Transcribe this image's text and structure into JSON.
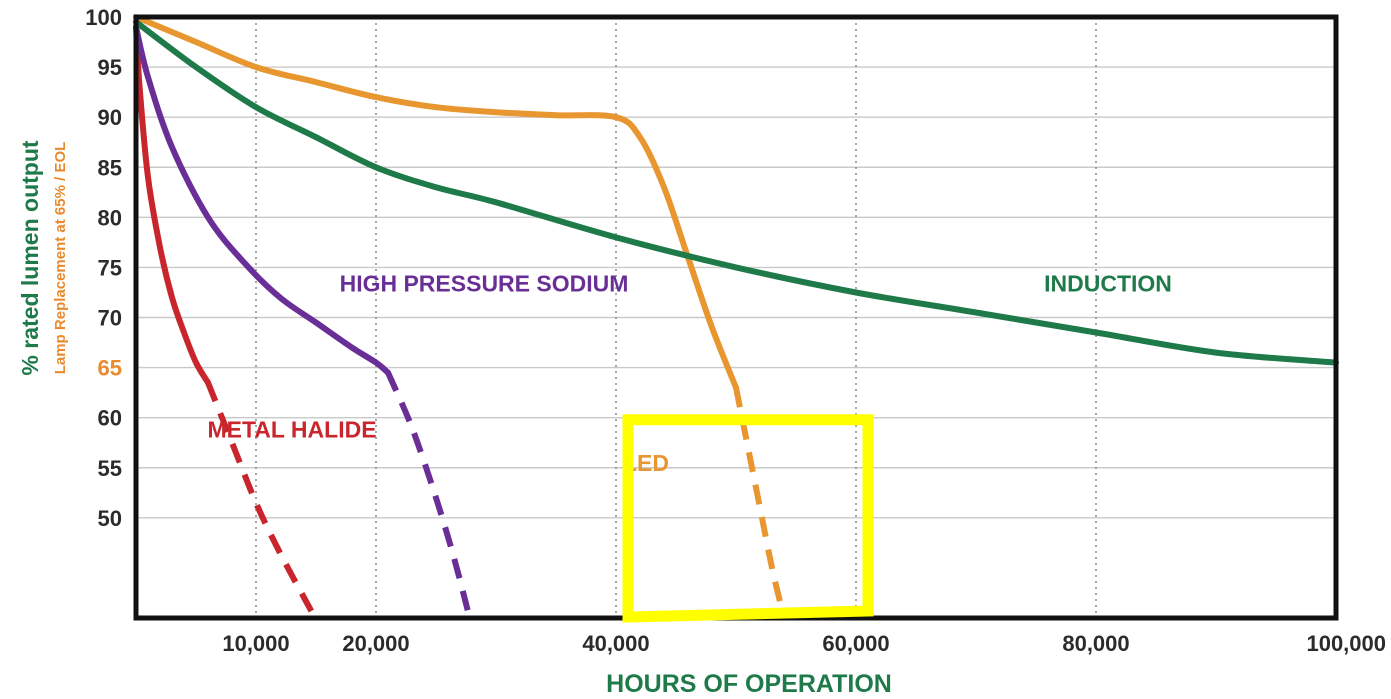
{
  "chart_data": {
    "type": "line",
    "xlabel": "HOURS OF OPERATION",
    "ylabel": "% rated lumen output",
    "ylabel_secondary": "Lamp Replacement at 65% / EOL",
    "x_ticks": [
      {
        "value": 10000,
        "label": "10,000"
      },
      {
        "value": 20000,
        "label": "20,000"
      },
      {
        "value": 40000,
        "label": "40,000"
      },
      {
        "value": 60000,
        "label": "60,000"
      },
      {
        "value": 80000,
        "label": "80,000"
      },
      {
        "value": 100000,
        "label": "100,000"
      }
    ],
    "y_ticks": [
      {
        "value": 100,
        "label": "100"
      },
      {
        "value": 95,
        "label": "95"
      },
      {
        "value": 90,
        "label": "90"
      },
      {
        "value": 85,
        "label": "85"
      },
      {
        "value": 80,
        "label": "80"
      },
      {
        "value": 75,
        "label": "75"
      },
      {
        "value": 70,
        "label": "70"
      },
      {
        "value": 65,
        "label": "65",
        "highlight": true
      },
      {
        "value": 60,
        "label": "60"
      },
      {
        "value": 55,
        "label": "55"
      },
      {
        "value": 50,
        "label": "50"
      }
    ],
    "y_highlight_color": "#e88a2d",
    "xlim": [
      0,
      100000
    ],
    "ylim": [
      40,
      100
    ],
    "grid": {
      "horizontal": "solid",
      "vertical": "dotted"
    },
    "series": [
      {
        "name": "METAL HALIDE",
        "color": "#c8262c",
        "solid": [
          [
            0,
            99
          ],
          [
            300,
            93
          ],
          [
            1000,
            84
          ],
          [
            2000,
            77
          ],
          [
            3000,
            72
          ],
          [
            4000,
            68.5
          ],
          [
            5000,
            65.5
          ],
          [
            6000,
            63.5
          ]
        ],
        "dashed": [
          [
            6000,
            63.5
          ],
          [
            8000,
            57.5
          ],
          [
            10000,
            51.5
          ],
          [
            12000,
            46.5
          ],
          [
            14700,
            40.5
          ]
        ]
      },
      {
        "name": "HIGH PRESSURE SODIUM",
        "color": "#6a2f97",
        "solid": [
          [
            0,
            99
          ],
          [
            1000,
            94
          ],
          [
            3000,
            87
          ],
          [
            6000,
            80
          ],
          [
            9000,
            75.5
          ],
          [
            12000,
            72
          ],
          [
            15000,
            69.5
          ],
          [
            18000,
            67
          ],
          [
            20000,
            65.5
          ],
          [
            21000,
            64.5
          ]
        ],
        "dashed": [
          [
            21000,
            64.5
          ],
          [
            23000,
            59
          ],
          [
            25000,
            52
          ],
          [
            26500,
            46
          ],
          [
            27700,
            40.5
          ]
        ]
      },
      {
        "name": "LED",
        "color": "#e8962f",
        "solid": [
          [
            0,
            100
          ],
          [
            5000,
            97.5
          ],
          [
            10000,
            95
          ],
          [
            15000,
            93.5
          ],
          [
            20000,
            92
          ],
          [
            25000,
            91
          ],
          [
            30000,
            90.5
          ],
          [
            35000,
            90.2
          ],
          [
            40000,
            90
          ],
          [
            42000,
            88
          ],
          [
            44000,
            83
          ],
          [
            46000,
            76
          ],
          [
            48000,
            69
          ],
          [
            50000,
            63
          ]
        ],
        "dashed": [
          [
            50000,
            63
          ],
          [
            51000,
            57
          ],
          [
            52000,
            51
          ],
          [
            53000,
            45
          ],
          [
            53800,
            41
          ]
        ]
      },
      {
        "name": "INDUCTION",
        "color": "#1f7a4a",
        "solid": [
          [
            0,
            99.5
          ],
          [
            5000,
            95
          ],
          [
            10000,
            91
          ],
          [
            15000,
            88
          ],
          [
            20000,
            85
          ],
          [
            25000,
            83
          ],
          [
            30000,
            81.5
          ],
          [
            40000,
            78
          ],
          [
            50000,
            75
          ],
          [
            60000,
            72.5
          ],
          [
            70000,
            70.5
          ],
          [
            80000,
            68.5
          ],
          [
            90000,
            66.5
          ],
          [
            100000,
            65.5
          ]
        ],
        "dashed": []
      }
    ],
    "annotations": [
      {
        "text": "METAL HALIDE",
        "x": 13000,
        "y": 58,
        "color": "#c8262c"
      },
      {
        "text": "HIGH PRESSURE SODIUM",
        "x": 29000,
        "y": 72.6,
        "color": "#6a2f97"
      },
      {
        "text": "LED",
        "x": 42500,
        "y": 54.7,
        "color": "#e8962f"
      },
      {
        "text": "INDUCTION",
        "x": 81000,
        "y": 72.6,
        "color": "#1f7a4a"
      }
    ],
    "highlight_box": {
      "color": "#ffff00",
      "x": [
        41000,
        61000
      ],
      "y": [
        40.4,
        59.8
      ]
    }
  }
}
